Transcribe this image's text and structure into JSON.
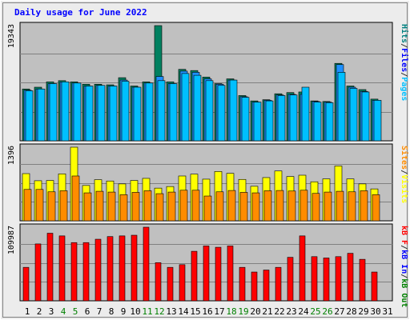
{
  "title": "Daily usage for June 2022",
  "panels": [
    {
      "max_label": "19343",
      "legend": [
        {
          "text": "Pages",
          "color": "#00bfff"
        },
        {
          "text": "/",
          "color": "#333333"
        },
        {
          "text": "Files",
          "color": "#0000ff"
        },
        {
          "text": "/",
          "color": "#333333"
        },
        {
          "text": "Hits",
          "color": "#008080"
        }
      ]
    },
    {
      "max_label": "1396",
      "legend": [
        {
          "text": "Visits",
          "color": "#ffff00"
        },
        {
          "text": "/",
          "color": "#333333"
        },
        {
          "text": "Sites",
          "color": "#ff8c00"
        }
      ]
    },
    {
      "max_label": "109987",
      "legend": [
        {
          "text": "kB Out",
          "color": "#008000"
        },
        {
          "text": "/",
          "color": "#333333"
        },
        {
          "text": "kB In",
          "color": "#0000ff"
        },
        {
          "text": "/",
          "color": "#333333"
        },
        {
          "text": "kB F",
          "color": "#ff0000"
        }
      ]
    }
  ],
  "colors": {
    "background": "#ececec",
    "plot_bg": "#c0c0c0",
    "title": "#0000ff",
    "hits": "#008060",
    "files": "#1e90ff",
    "pages": "#00bfff",
    "visits": "#ffff00",
    "sites": "#ff8c00",
    "kbytes": "#ff0000",
    "weekend_day": "#008000",
    "weekday": "#000000"
  },
  "chart_data": {
    "type": "bar",
    "title": "Daily usage for June 2022",
    "categories": [
      "1",
      "2",
      "3",
      "4",
      "5",
      "6",
      "7",
      "8",
      "9",
      "10",
      "11",
      "12",
      "13",
      "14",
      "15",
      "16",
      "17",
      "18",
      "19",
      "20",
      "21",
      "22",
      "23",
      "24",
      "25",
      "26",
      "27",
      "28",
      "29",
      "30",
      "31"
    ],
    "weekend_days": [
      "4",
      "5",
      "11",
      "12",
      "18",
      "19",
      "25",
      "26"
    ],
    "series": [
      {
        "name": "Hits",
        "panel": 0,
        "values": [
          8700,
          9000,
          9900,
          10100,
          9900,
          9500,
          9500,
          9400,
          10600,
          9200,
          9900,
          19343,
          9900,
          12000,
          11800,
          10700,
          9600,
          10400,
          7600,
          6700,
          6900,
          7900,
          8100,
          8200,
          6700,
          6600,
          13000,
          9200,
          8600,
          7000,
          null
        ]
      },
      {
        "name": "Files",
        "panel": 0,
        "values": [
          8500,
          8700,
          9600,
          9900,
          9700,
          9200,
          9300,
          9200,
          10200,
          9000,
          9700,
          10800,
          9600,
          11700,
          11500,
          10400,
          9500,
          10200,
          7400,
          6500,
          6800,
          7700,
          7800,
          7800,
          6600,
          6500,
          12800,
          9000,
          8300,
          6800,
          null
        ]
      },
      {
        "name": "Pages",
        "panel": 0,
        "values": [
          8400,
          8700,
          9600,
          9900,
          9700,
          9200,
          9300,
          9200,
          10000,
          9000,
          9700,
          10100,
          9600,
          11300,
          11000,
          10100,
          9300,
          10200,
          7300,
          6500,
          6700,
          7600,
          7700,
          9000,
          6500,
          6400,
          11500,
          8800,
          8200,
          6800,
          null
        ]
      },
      {
        "name": "Visits",
        "panel": 1,
        "values": [
          895,
          760,
          765,
          890,
          1396,
          670,
          780,
          755,
          700,
          765,
          805,
          620,
          650,
          850,
          885,
          790,
          935,
          900,
          785,
          655,
          820,
          945,
          840,
          865,
          740,
          795,
          1040,
          795,
          700,
          605,
          null
        ]
      },
      {
        "name": "Sites",
        "panel": 1,
        "values": [
          595,
          595,
          550,
          570,
          850,
          530,
          560,
          545,
          495,
          540,
          570,
          515,
          545,
          580,
          580,
          470,
          550,
          575,
          540,
          530,
          570,
          575,
          565,
          580,
          520,
          545,
          560,
          550,
          570,
          495,
          null
        ]
      },
      {
        "name": "kB F",
        "panel": 2,
        "values": [
          50000,
          85000,
          101000,
          97000,
          87000,
          87000,
          92000,
          96000,
          97000,
          98000,
          109987,
          57000,
          50000,
          54000,
          74000,
          82000,
          80000,
          82000,
          50000,
          43000,
          46000,
          50000,
          65000,
          97000,
          66000,
          64000,
          66000,
          71000,
          62000,
          43000,
          null
        ]
      }
    ]
  }
}
